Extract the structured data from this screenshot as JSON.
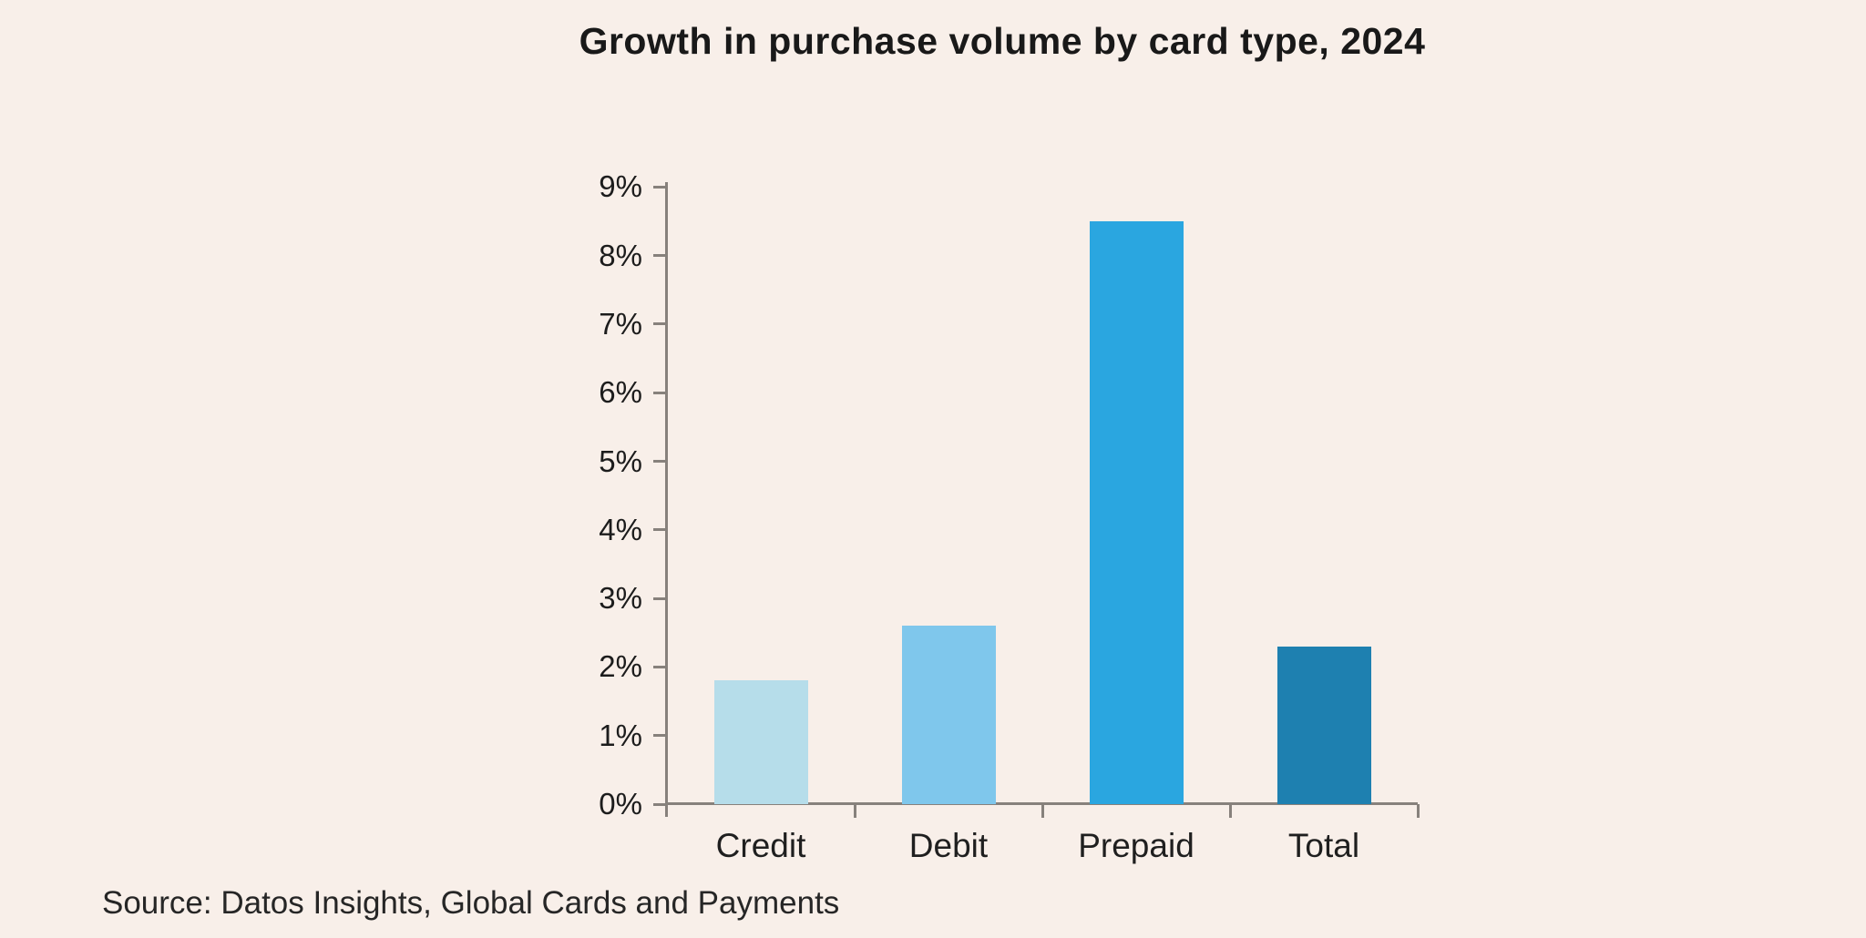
{
  "title": "Growth in purchase volume by card type, 2024",
  "source_note": "Source: Datos Insights, Global Cards and Payments",
  "chart_data": {
    "type": "bar",
    "title": "Growth in purchase volume by card type, 2024",
    "categories": [
      "Credit",
      "Debit",
      "Prepaid",
      "Total"
    ],
    "values": [
      1.8,
      2.6,
      8.5,
      2.3
    ],
    "unit": "%",
    "xlabel": "",
    "ylabel": "",
    "ylim": [
      0,
      9
    ],
    "ytick_step": 1,
    "ytick_labels": [
      "0%",
      "1%",
      "2%",
      "3%",
      "4%",
      "5%",
      "6%",
      "7%",
      "8%",
      "9%"
    ],
    "grid": false,
    "legend_position": "none",
    "bar_colors": [
      "#B6DDEA",
      "#7FC7EC",
      "#2AA6E0",
      "#1E80B0"
    ],
    "source": "Source: Datos Insights, Global Cards and Payments"
  },
  "colors": {
    "background": "#F8EFE9",
    "axis": "#87817C",
    "text": "#1C1C1C"
  }
}
